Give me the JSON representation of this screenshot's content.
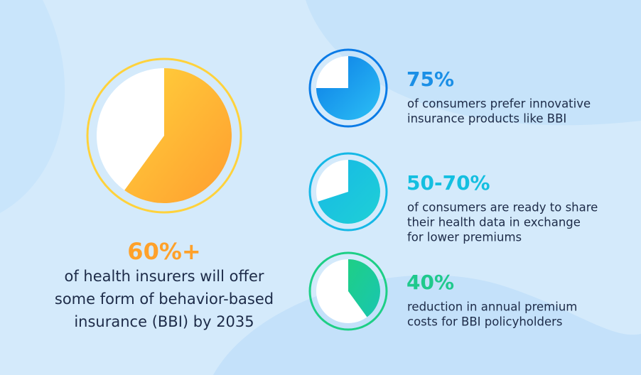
{
  "chart_data": [
    {
      "type": "pie",
      "values": [
        60
      ],
      "value_labels": [
        "60%+"
      ],
      "colors": [
        "#ffd23c",
        "#ff9d2f"
      ],
      "label_color": "#ffa12a",
      "caption": [
        "of health insurers will offer",
        "some form of behavior-based",
        "insurance (BBI) by 2035"
      ]
    },
    {
      "type": "pie",
      "values": [
        75
      ],
      "value_labels": [
        "75%"
      ],
      "colors": [
        "#0b7be6",
        "#2cc0f5"
      ],
      "label_color": "#1b8fe6",
      "caption": [
        "of consumers prefer innovative",
        "insurance products like BBI"
      ]
    },
    {
      "type": "pie",
      "values": [
        70
      ],
      "value_labels": [
        "50-70%"
      ],
      "colors": [
        "#16b8e6",
        "#1fd0d6"
      ],
      "label_color": "#14bfe0",
      "caption": [
        "of consumers are ready to share",
        "their health data in exchange",
        "for lower premiums"
      ]
    },
    {
      "type": "pie",
      "values": [
        40
      ],
      "value_labels": [
        "40%"
      ],
      "colors": [
        "#1ecf86",
        "#19c6b0"
      ],
      "label_color": "#1fc98c",
      "caption": [
        "reduction in annual premium",
        "costs for BBI policyholders"
      ]
    }
  ]
}
